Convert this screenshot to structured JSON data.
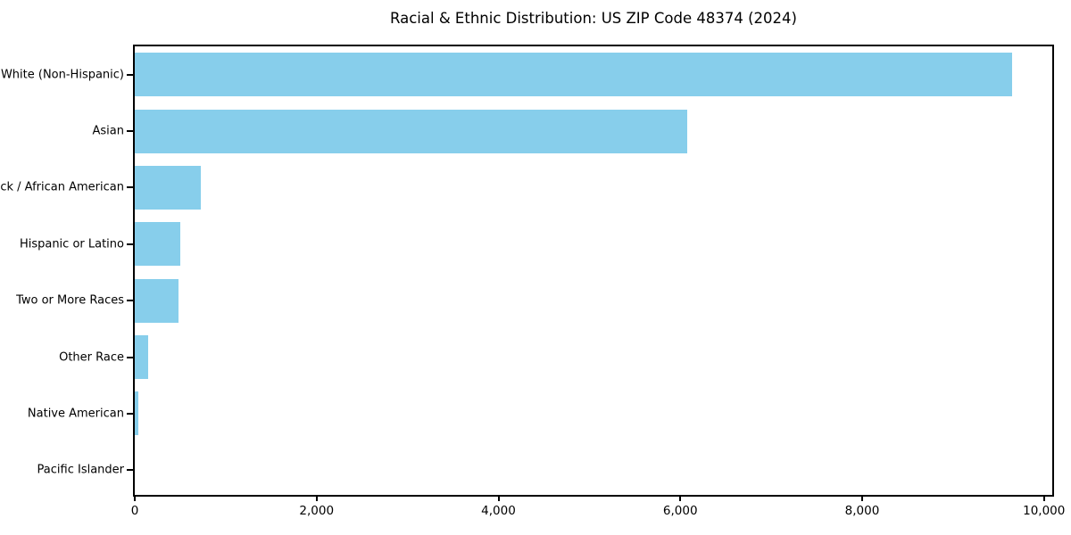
{
  "chart_data": {
    "type": "bar",
    "orientation": "horizontal",
    "title": "Racial & Ethnic Distribution: US ZIP Code 48374 (2024)",
    "categories": [
      "White (Non-Hispanic)",
      "Asian",
      "Black / African American",
      "Hispanic or Latino",
      "Two or More Races",
      "Other Race",
      "Native American",
      "Pacific Islander"
    ],
    "values": [
      9650,
      6080,
      730,
      500,
      480,
      150,
      40,
      0
    ],
    "xlabel": "",
    "ylabel": "",
    "xlim": [
      0,
      10130
    ],
    "x_ticks": [
      0,
      2000,
      4000,
      6000,
      8000,
      10000
    ],
    "x_tick_labels": [
      "0",
      "2,000",
      "4,000",
      "6,000",
      "8,000",
      "10,000"
    ],
    "grid": false,
    "legend": false,
    "bar_color": "#87CEEB",
    "frame_color": "#000000",
    "background_color": "#ffffff"
  }
}
